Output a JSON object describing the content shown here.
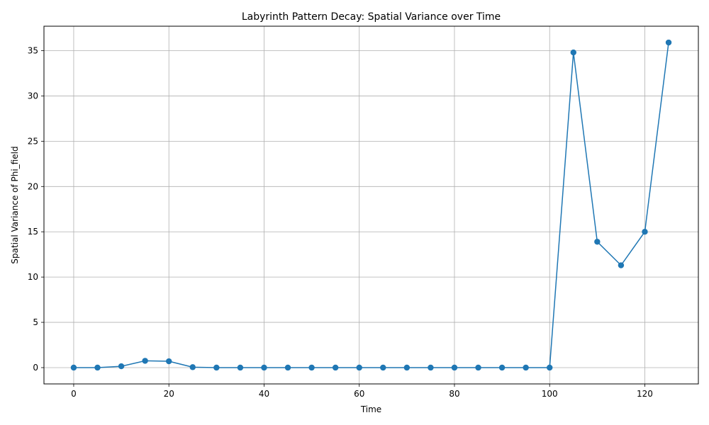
{
  "chart_data": {
    "type": "line",
    "title": "Labyrinth Pattern Decay: Spatial Variance over Time",
    "xlabel": "Time",
    "ylabel": "Spatial Variance of Phi_field",
    "x": [
      0,
      5,
      10,
      15,
      20,
      25,
      30,
      35,
      40,
      45,
      50,
      55,
      60,
      65,
      70,
      75,
      80,
      85,
      90,
      95,
      100,
      105,
      110,
      115,
      120,
      125
    ],
    "series": [
      {
        "values": [
          0.0,
          0.0,
          0.15,
          0.75,
          0.7,
          0.05,
          0.0,
          0.0,
          0.0,
          0.0,
          0.0,
          0.0,
          0.0,
          0.0,
          0.0,
          0.0,
          0.0,
          0.0,
          0.0,
          0.0,
          0.0,
          34.8,
          13.9,
          11.3,
          15.0,
          35.9
        ],
        "color": "#1f77b4",
        "marker": "circle"
      }
    ],
    "xlim": [
      -6.25,
      131.25
    ],
    "ylim": [
      -1.8,
      37.7
    ],
    "xticks": [
      0,
      20,
      40,
      60,
      80,
      100,
      120
    ],
    "yticks": [
      0,
      5,
      10,
      15,
      20,
      25,
      30,
      35
    ],
    "grid": true,
    "legend": "none"
  }
}
